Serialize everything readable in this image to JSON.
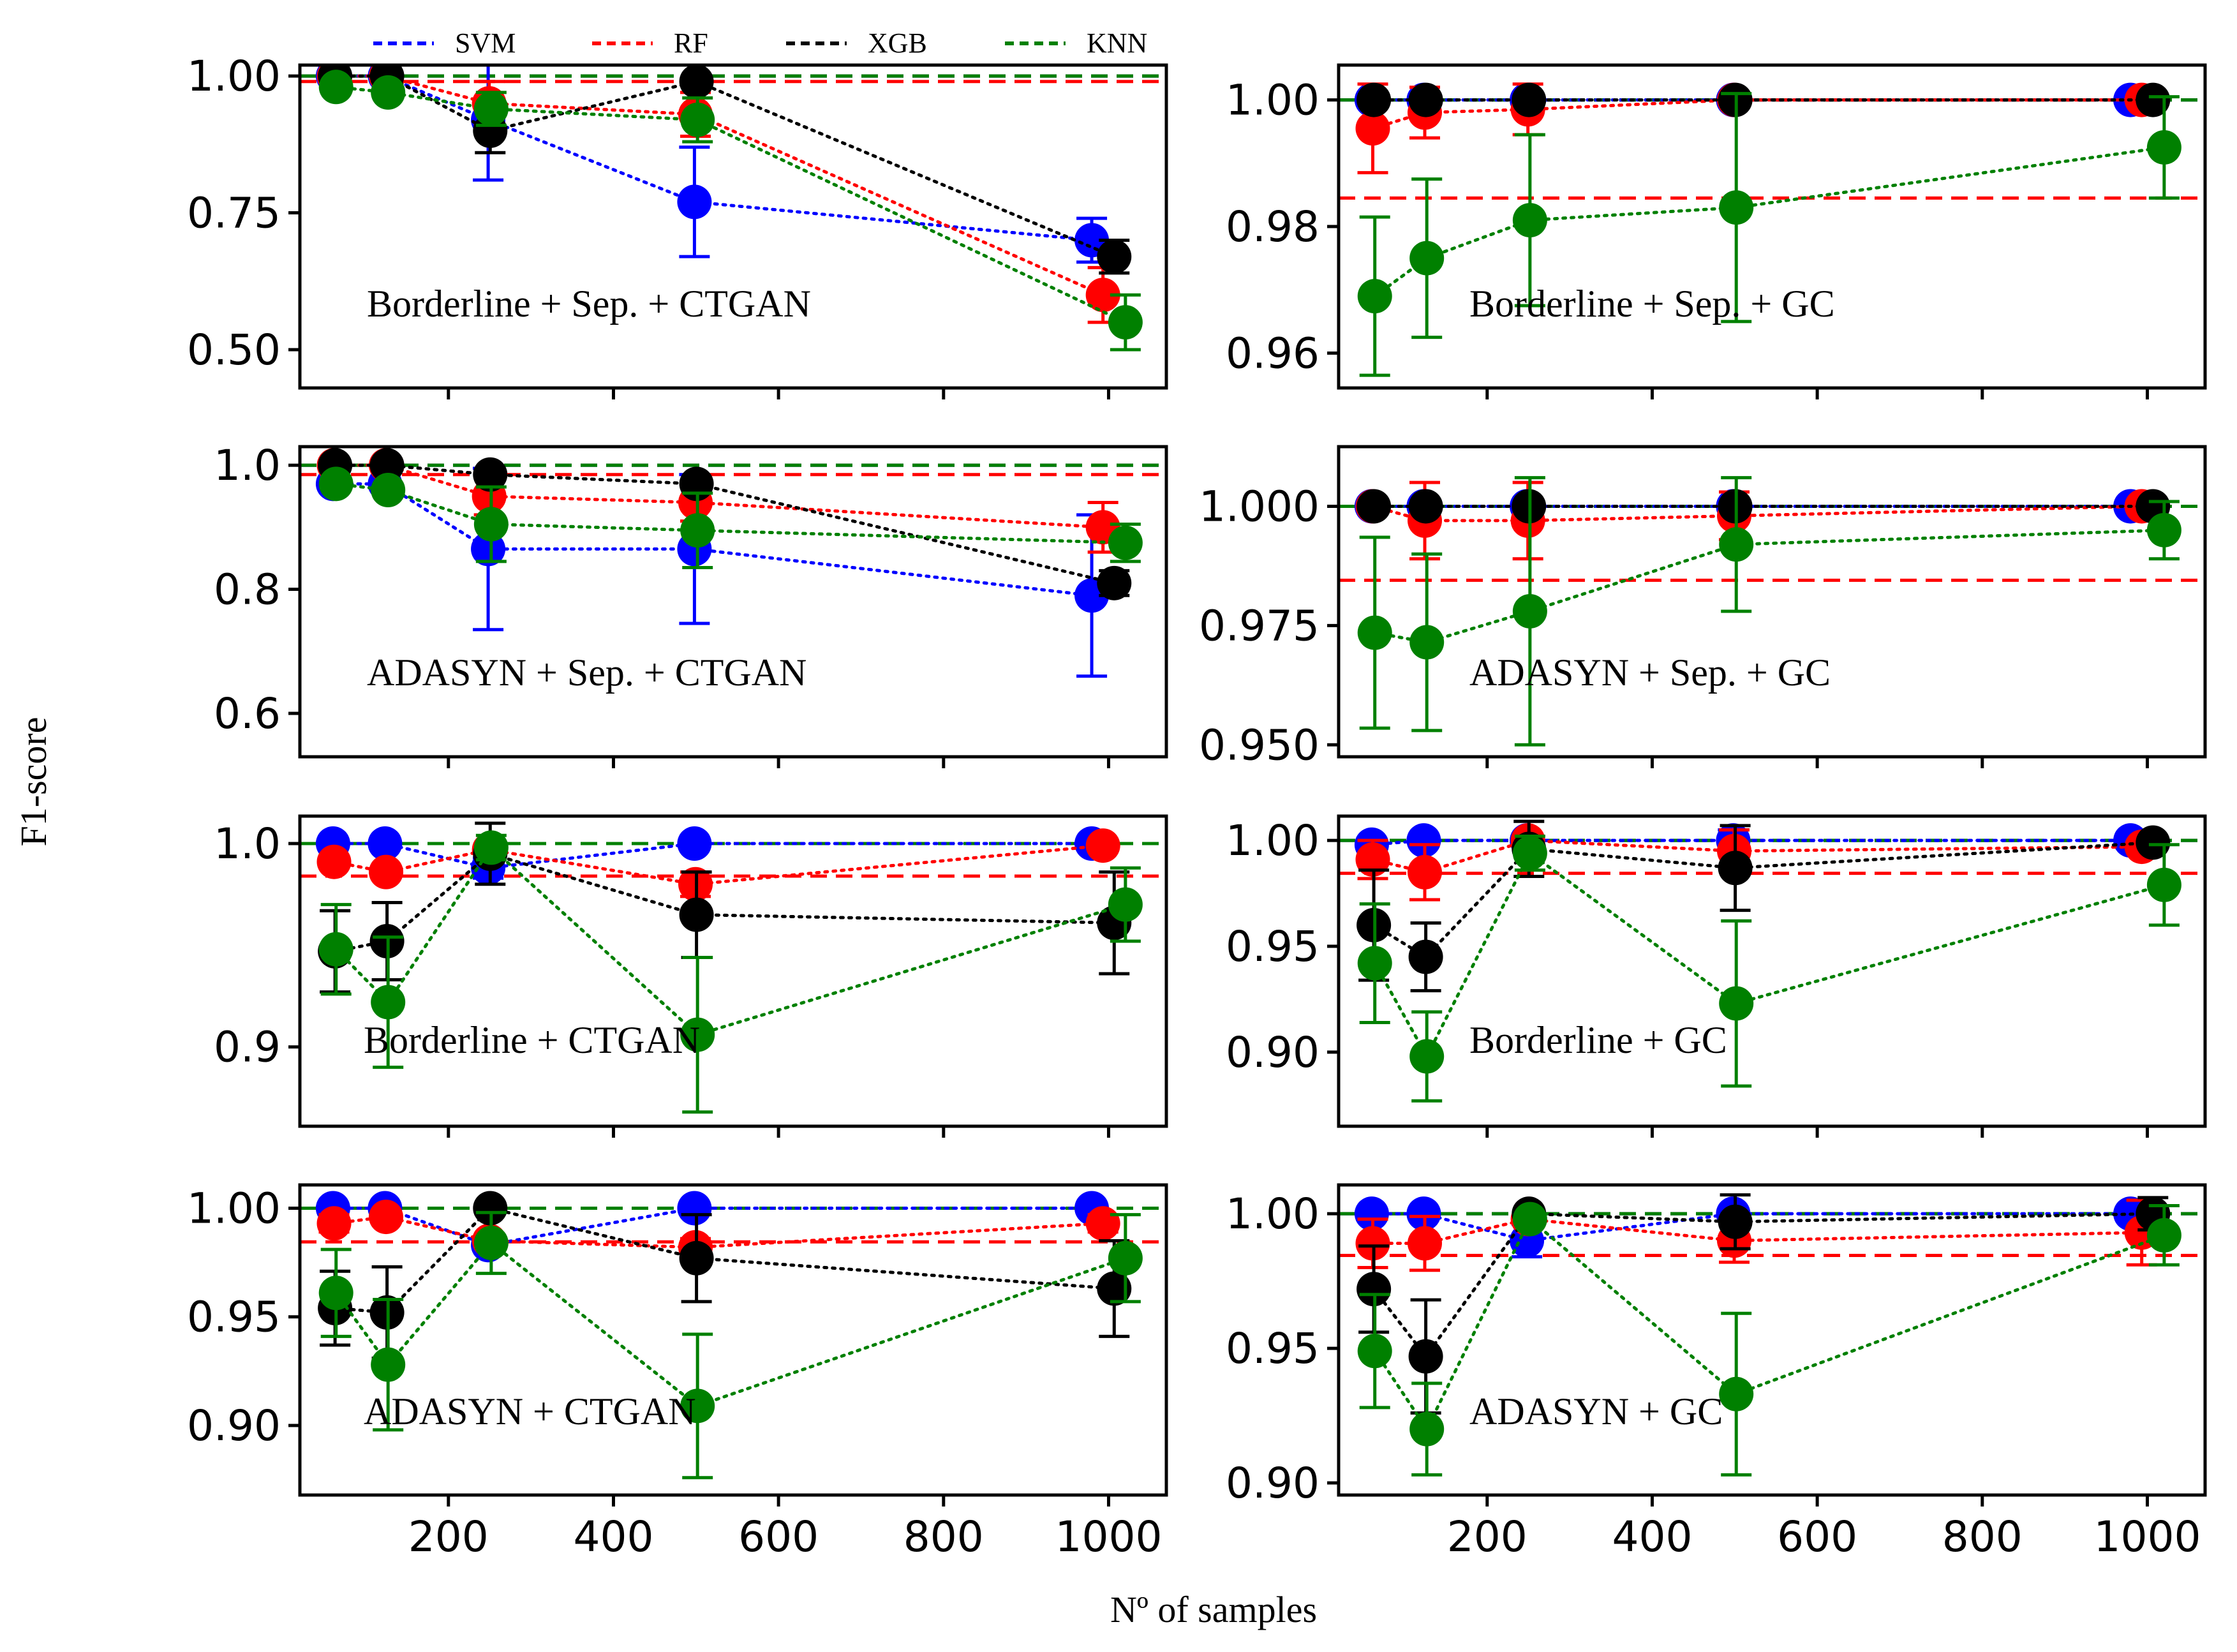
{
  "legend": [
    {
      "name": "SVM",
      "color": "#0000ff"
    },
    {
      "name": "RF",
      "color": "#ff0000"
    },
    {
      "name": "XGB",
      "color": "#000000"
    },
    {
      "name": "KNN",
      "color": "#008000"
    }
  ],
  "ylabel": "F1-score",
  "xlabel": "Nº of samples",
  "x_ticks": [
    200,
    400,
    600,
    800,
    1000
  ],
  "chart_data": [
    {
      "type": "scatter",
      "title": "Borderline + Sep. + CTGAN",
      "x": [
        62,
        125,
        250,
        500,
        1000
      ],
      "xlim": [
        20,
        1070
      ],
      "ylim": [
        0.43,
        1.02
      ],
      "yticks": [
        0.5,
        0.75,
        1.0
      ],
      "ytick_labels": [
        "0.50",
        "0.75",
        "1.00"
      ],
      "baselines": {
        "SVM": 1.0,
        "RF": 0.99,
        "XGB": 1.0,
        "KNN": 1.0
      },
      "series": [
        {
          "name": "SVM",
          "values": [
            1.0,
            1.0,
            0.92,
            0.77,
            0.7
          ],
          "errors": [
            0.0,
            0.0,
            0.11,
            0.1,
            0.04
          ]
        },
        {
          "name": "RF",
          "values": [
            1.0,
            1.0,
            0.95,
            0.93,
            0.6
          ],
          "errors": [
            0.0,
            0.0,
            0.04,
            0.04,
            0.05
          ]
        },
        {
          "name": "XGB",
          "values": [
            1.0,
            1.0,
            0.9,
            0.99,
            0.67
          ],
          "errors": [
            0.0,
            0.0,
            0.04,
            0.0,
            0.03
          ]
        },
        {
          "name": "KNN",
          "values": [
            0.98,
            0.97,
            0.94,
            0.92,
            0.55
          ],
          "errors": [
            0.0,
            0.0,
            0.03,
            0.04,
            0.05
          ]
        }
      ]
    },
    {
      "type": "scatter",
      "title": "Borderline + Sep. + GC",
      "x": [
        62,
        125,
        250,
        500,
        1000
      ],
      "xlim": [
        20,
        1070
      ],
      "ylim": [
        0.9545,
        1.0055
      ],
      "yticks": [
        0.96,
        0.98,
        1.0
      ],
      "ytick_labels": [
        "0.96",
        "0.98",
        "1.00"
      ],
      "baselines": {
        "SVM": 1.0,
        "RF": 0.9845,
        "XGB": 1.0,
        "KNN": 1.0
      },
      "series": [
        {
          "name": "SVM",
          "values": [
            1.0,
            1.0,
            1.0,
            1.0,
            1.0
          ],
          "errors": [
            0.0,
            0.0,
            0.0,
            0.0,
            0.0
          ]
        },
        {
          "name": "RF",
          "values": [
            0.9955,
            0.998,
            0.9985,
            1.0,
            1.0
          ],
          "errors": [
            0.007,
            0.004,
            0.004,
            0.0,
            0.0
          ]
        },
        {
          "name": "XGB",
          "values": [
            1.0,
            1.0,
            1.0,
            1.0,
            1.0
          ],
          "errors": [
            0.0,
            0.0,
            0.0,
            0.0,
            0.0
          ]
        },
        {
          "name": "KNN",
          "values": [
            0.969,
            0.975,
            0.981,
            0.983,
            0.9925
          ],
          "errors": [
            0.0125,
            0.0125,
            0.0135,
            0.018,
            0.008
          ]
        }
      ]
    },
    {
      "type": "scatter",
      "title": "ADASYN + Sep. + CTGAN",
      "x": [
        62,
        125,
        250,
        500,
        1000
      ],
      "xlim": [
        20,
        1070
      ],
      "ylim": [
        0.53,
        1.03
      ],
      "yticks": [
        0.6,
        0.8,
        1.0
      ],
      "ytick_labels": [
        "0.6",
        "0.8",
        "1.0"
      ],
      "baselines": {
        "SVM": 1.0,
        "RF": 0.985,
        "XGB": 1.0,
        "KNN": 1.0
      },
      "series": [
        {
          "name": "SVM",
          "values": [
            0.97,
            0.97,
            0.865,
            0.865,
            0.79
          ],
          "errors": [
            0.0,
            0.0,
            0.13,
            0.12,
            0.13
          ]
        },
        {
          "name": "RF",
          "values": [
            1.0,
            1.0,
            0.95,
            0.94,
            0.9
          ],
          "errors": [
            0.0,
            0.0,
            0.03,
            0.03,
            0.04
          ]
        },
        {
          "name": "XGB",
          "values": [
            1.0,
            1.0,
            0.985,
            0.97,
            0.81
          ],
          "errors": [
            0.0,
            0.0,
            0.0,
            0.0,
            0.02
          ]
        },
        {
          "name": "KNN",
          "values": [
            0.97,
            0.96,
            0.905,
            0.895,
            0.875
          ],
          "errors": [
            0.0,
            0.0,
            0.06,
            0.06,
            0.03
          ]
        }
      ]
    },
    {
      "type": "scatter",
      "title": "ADASYN + Sep. + GC",
      "x": [
        62,
        125,
        250,
        500,
        1000
      ],
      "xlim": [
        20,
        1070
      ],
      "ylim": [
        0.9475,
        1.0125
      ],
      "yticks": [
        0.95,
        0.975,
        1.0
      ],
      "ytick_labels": [
        "0.950",
        "0.975",
        "1.000"
      ],
      "baselines": {
        "SVM": 1.0,
        "RF": 0.9845,
        "XGB": 1.0,
        "KNN": 1.0
      },
      "series": [
        {
          "name": "SVM",
          "values": [
            1.0,
            1.0,
            1.0,
            1.0,
            1.0
          ],
          "errors": [
            0.0,
            0.0,
            0.0,
            0.0,
            0.0
          ]
        },
        {
          "name": "RF",
          "values": [
            1.0,
            0.997,
            0.997,
            0.998,
            1.0
          ],
          "errors": [
            0.0,
            0.008,
            0.008,
            0.005,
            0.0
          ]
        },
        {
          "name": "XGB",
          "values": [
            1.0,
            1.0,
            1.0,
            1.0,
            1.0
          ],
          "errors": [
            0.0,
            0.0,
            0.0,
            0.0,
            0.0
          ]
        },
        {
          "name": "KNN",
          "values": [
            0.9735,
            0.9715,
            0.978,
            0.992,
            0.995
          ],
          "errors": [
            0.02,
            0.0185,
            0.028,
            0.014,
            0.006
          ]
        }
      ]
    },
    {
      "type": "scatter",
      "title": "Borderline + CTGAN",
      "x": [
        62,
        125,
        250,
        500,
        1000
      ],
      "xlim": [
        20,
        1070
      ],
      "ylim": [
        0.861,
        1.0135
      ],
      "yticks": [
        0.9,
        1.0
      ],
      "ytick_labels": [
        "0.9",
        "1.0"
      ],
      "baselines": {
        "SVM": 1.0,
        "RF": 0.984,
        "XGB": 1.0,
        "KNN": 1.0
      },
      "series": [
        {
          "name": "SVM",
          "values": [
            1.0,
            1.0,
            0.988,
            1.0,
            1.0
          ],
          "errors": [
            0.0,
            0.0,
            0.005,
            0.0,
            0.0
          ]
        },
        {
          "name": "RF",
          "values": [
            0.991,
            0.986,
            0.997,
            0.98,
            0.999
          ],
          "errors": [
            0.0,
            0.0,
            0.003,
            0.006,
            0.002
          ]
        },
        {
          "name": "XGB",
          "values": [
            0.947,
            0.952,
            0.995,
            0.965,
            0.961
          ],
          "errors": [
            0.02,
            0.019,
            0.015,
            0.021,
            0.025
          ]
        },
        {
          "name": "KNN",
          "values": [
            0.948,
            0.922,
            0.998,
            0.906,
            0.97
          ],
          "errors": [
            0.022,
            0.032,
            0.006,
            0.038,
            0.018
          ]
        }
      ]
    },
    {
      "type": "scatter",
      "title": "Borderline + GC",
      "x": [
        62,
        125,
        250,
        500,
        1000
      ],
      "xlim": [
        20,
        1070
      ],
      "ylim": [
        0.865,
        1.0115
      ],
      "yticks": [
        0.9,
        0.95,
        1.0
      ],
      "ytick_labels": [
        "0.90",
        "0.95",
        "1.00"
      ],
      "baselines": {
        "SVM": 1.0,
        "RF": 0.9845,
        "XGB": 1.0,
        "KNN": 1.0
      },
      "series": [
        {
          "name": "SVM",
          "values": [
            0.998,
            1.0,
            1.0,
            1.0,
            1.0
          ],
          "errors": [
            0.0,
            0.0,
            0.0,
            0.005,
            0.0
          ]
        },
        {
          "name": "RF",
          "values": [
            0.991,
            0.985,
            1.0,
            0.995,
            0.997
          ],
          "errors": [
            0.009,
            0.013,
            0.0,
            0.01,
            0.003
          ]
        },
        {
          "name": "XGB",
          "values": [
            0.96,
            0.945,
            0.996,
            0.987,
            0.999
          ],
          "errors": [
            0.026,
            0.016,
            0.013,
            0.02,
            0.001
          ]
        },
        {
          "name": "KNN",
          "values": [
            0.942,
            0.898,
            0.994,
            0.923,
            0.979
          ],
          "errors": [
            0.028,
            0.021,
            0.008,
            0.039,
            0.019
          ]
        }
      ]
    },
    {
      "type": "scatter",
      "title": "ADASYN + CTGAN",
      "x": [
        62,
        125,
        250,
        500,
        1000
      ],
      "xlim": [
        20,
        1070
      ],
      "ylim": [
        0.868,
        1.0107
      ],
      "yticks": [
        0.9,
        0.95,
        1.0
      ],
      "ytick_labels": [
        "0.90",
        "0.95",
        "1.00"
      ],
      "baselines": {
        "SVM": 1.0,
        "RF": 0.9845,
        "XGB": 1.0,
        "KNN": 1.0
      },
      "series": [
        {
          "name": "SVM",
          "values": [
            1.0,
            1.0,
            0.983,
            1.0,
            1.0
          ],
          "errors": [
            0.0,
            0.0,
            0.0,
            0.0,
            0.0
          ]
        },
        {
          "name": "RF",
          "values": [
            0.993,
            0.996,
            0.985,
            0.982,
            0.993
          ],
          "errors": [
            0.004,
            0.0,
            0.0,
            0.004,
            0.004
          ]
        },
        {
          "name": "XGB",
          "values": [
            0.954,
            0.952,
            1.0,
            0.977,
            0.963
          ],
          "errors": [
            0.017,
            0.021,
            0.0,
            0.02,
            0.022
          ]
        },
        {
          "name": "KNN",
          "values": [
            0.961,
            0.928,
            0.984,
            0.909,
            0.977
          ],
          "errors": [
            0.02,
            0.03,
            0.014,
            0.033,
            0.02
          ]
        }
      ]
    },
    {
      "type": "scatter",
      "title": "ADASYN + GC",
      "x": [
        62,
        125,
        250,
        500,
        1000
      ],
      "xlim": [
        20,
        1070
      ],
      "ylim": [
        0.8955,
        1.0107
      ],
      "yticks": [
        0.9,
        0.95,
        1.0
      ],
      "ytick_labels": [
        "0.90",
        "0.95",
        "1.00"
      ],
      "baselines": {
        "SVM": 1.0,
        "RF": 0.9845,
        "XGB": 1.0,
        "KNN": 1.0
      },
      "series": [
        {
          "name": "SVM",
          "values": [
            1.0,
            1.0,
            0.99,
            1.0,
            1.0
          ],
          "errors": [
            0.0,
            0.0,
            0.006,
            0.0,
            0.0
          ]
        },
        {
          "name": "RF",
          "values": [
            0.989,
            0.989,
            0.998,
            0.99,
            0.993
          ],
          "errors": [
            0.009,
            0.01,
            0.0,
            0.008,
            0.012
          ]
        },
        {
          "name": "XGB",
          "values": [
            0.972,
            0.947,
            1.0,
            0.997,
            1.0
          ],
          "errors": [
            0.016,
            0.021,
            0.0,
            0.01,
            0.006
          ]
        },
        {
          "name": "KNN",
          "values": [
            0.949,
            0.92,
            0.998,
            0.933,
            0.992
          ],
          "errors": [
            0.021,
            0.017,
            0.0,
            0.03,
            0.011
          ]
        }
      ]
    }
  ]
}
